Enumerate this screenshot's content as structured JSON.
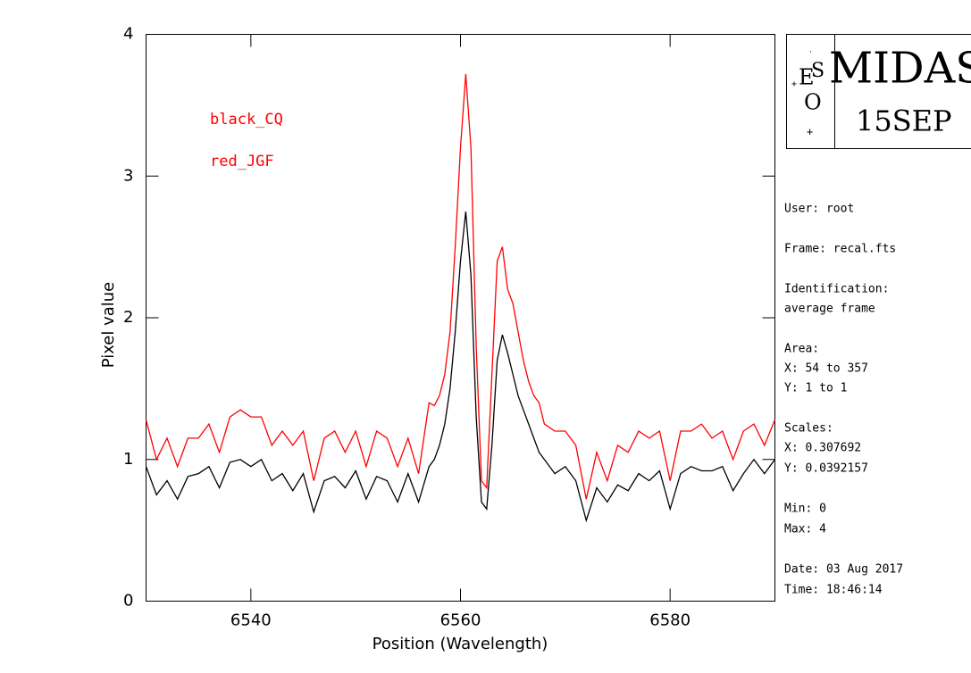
{
  "chart_data": {
    "type": "line",
    "xlabel": "Position (Wavelength)",
    "ylabel": "Pixel value",
    "xlim": [
      6530,
      6590
    ],
    "xticks": [
      6540,
      6560,
      6580
    ],
    "ylim": [
      0,
      4
    ],
    "yticks": [
      0,
      1,
      2,
      3,
      4
    ],
    "x": [
      6530,
      6531,
      6532,
      6533,
      6534,
      6535,
      6536,
      6537,
      6538,
      6539,
      6540,
      6541,
      6542,
      6543,
      6544,
      6545,
      6546,
      6547,
      6548,
      6549,
      6550,
      6551,
      6552,
      6553,
      6554,
      6555,
      6556,
      6557,
      6557.5,
      6558,
      6558.5,
      6559,
      6559.5,
      6560,
      6560.5,
      6561,
      6561.5,
      6562,
      6562.5,
      6563,
      6563.5,
      6564,
      6564.5,
      6565,
      6565.5,
      6566,
      6566.5,
      6567,
      6567.5,
      6568,
      6569,
      6570,
      6571,
      6572,
      6573,
      6574,
      6575,
      6576,
      6577,
      6578,
      6579,
      6580,
      6581,
      6582,
      6583,
      6584,
      6585,
      6586,
      6587,
      6588,
      6589,
      6590
    ],
    "series": [
      {
        "name": "black_CQ",
        "color": "#000000",
        "values": [
          0.95,
          0.75,
          0.85,
          0.72,
          0.88,
          0.9,
          0.95,
          0.8,
          0.98,
          1.0,
          0.95,
          1.0,
          0.85,
          0.9,
          0.78,
          0.9,
          0.63,
          0.85,
          0.88,
          0.8,
          0.92,
          0.72,
          0.88,
          0.85,
          0.7,
          0.9,
          0.7,
          0.95,
          1.0,
          1.1,
          1.25,
          1.5,
          1.9,
          2.4,
          2.75,
          2.3,
          1.3,
          0.7,
          0.65,
          1.1,
          1.7,
          1.88,
          1.75,
          1.6,
          1.45,
          1.35,
          1.25,
          1.15,
          1.05,
          1.0,
          0.9,
          0.95,
          0.85,
          0.57,
          0.8,
          0.7,
          0.82,
          0.78,
          0.9,
          0.85,
          0.92,
          0.65,
          0.9,
          0.95,
          0.92,
          0.92,
          0.95,
          0.78,
          0.9,
          1.0,
          0.9,
          1.0
        ]
      },
      {
        "name": "red_JGF",
        "color": "#ff0000",
        "values": [
          1.28,
          1.0,
          1.15,
          0.95,
          1.15,
          1.15,
          1.25,
          1.05,
          1.3,
          1.35,
          1.3,
          1.3,
          1.1,
          1.2,
          1.1,
          1.2,
          0.85,
          1.15,
          1.2,
          1.05,
          1.2,
          0.95,
          1.2,
          1.15,
          0.95,
          1.15,
          0.9,
          1.4,
          1.38,
          1.45,
          1.6,
          1.9,
          2.5,
          3.2,
          3.72,
          3.2,
          1.8,
          0.85,
          0.8,
          1.6,
          2.4,
          2.5,
          2.2,
          2.1,
          1.9,
          1.7,
          1.55,
          1.45,
          1.4,
          1.25,
          1.2,
          1.2,
          1.1,
          0.72,
          1.05,
          0.85,
          1.1,
          1.05,
          1.2,
          1.15,
          1.2,
          0.85,
          1.2,
          1.2,
          1.25,
          1.15,
          1.2,
          1.0,
          1.2,
          1.25,
          1.1,
          1.28
        ]
      }
    ],
    "legend_color": "#ff0000"
  },
  "side_panel": {
    "logo": {
      "title": "MIDAS",
      "date": "15SEP",
      "e": "E",
      "s": "S",
      "o": "O"
    },
    "lines": [
      "User: root",
      "Frame: recal.fts",
      "Identification:",
      "average frame",
      "Area:",
      "X: 54 to 357",
      "Y: 1 to 1",
      "Scales:",
      "X: 0.307692",
      "Y: 0.0392157",
      "Min: 0",
      "Max: 4",
      "Date: 03 Aug 2017",
      "Time: 18:46:14"
    ]
  }
}
